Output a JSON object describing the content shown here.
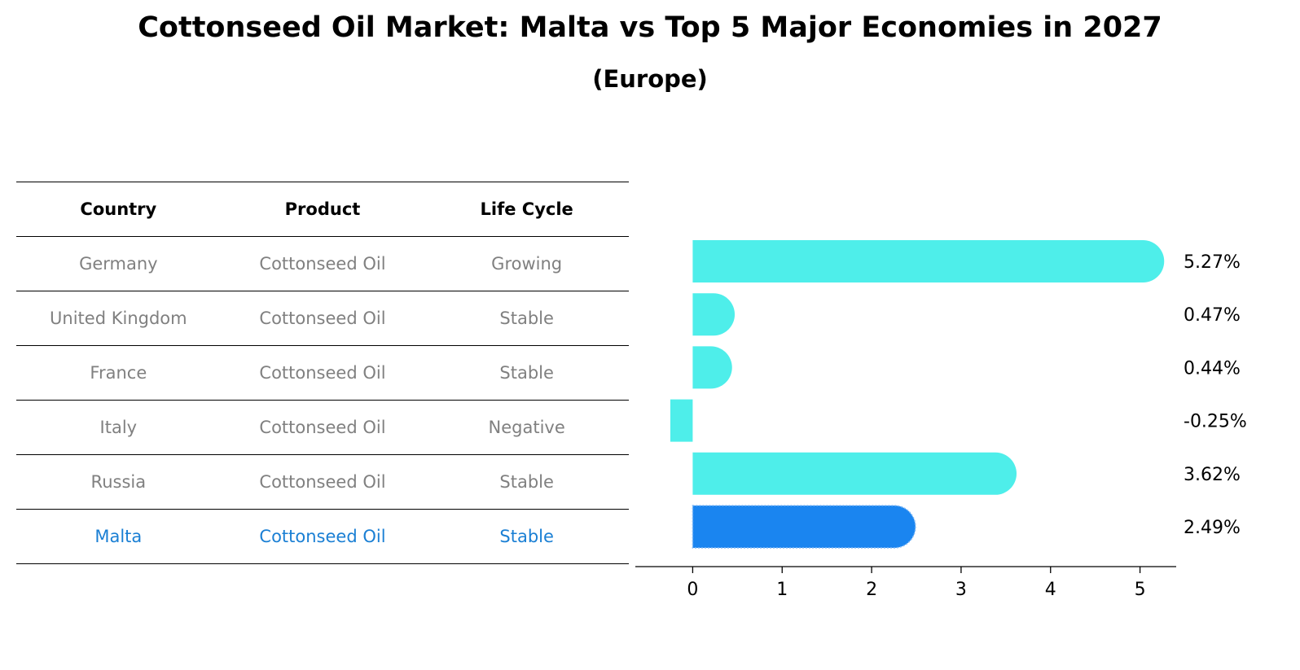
{
  "title": "Cottonseed Oil Market: Malta vs Top 5 Major Economies in 2027",
  "subtitle": "(Europe)",
  "table": {
    "headers": [
      "Country",
      "Product",
      "Life Cycle"
    ],
    "rows": [
      {
        "country": "Germany",
        "product": "Cottonseed Oil",
        "life_cycle": "Growing"
      },
      {
        "country": "United Kingdom",
        "product": "Cottonseed Oil",
        "life_cycle": "Stable"
      },
      {
        "country": "France",
        "product": "Cottonseed Oil",
        "life_cycle": "Stable"
      },
      {
        "country": "Italy",
        "product": "Cottonseed Oil",
        "life_cycle": "Negative"
      },
      {
        "country": "Russia",
        "product": "Cottonseed Oil",
        "life_cycle": "Stable"
      },
      {
        "country": "Malta",
        "product": "Cottonseed Oil",
        "life_cycle": "Stable"
      }
    ]
  },
  "chart_data": {
    "type": "bar",
    "orientation": "horizontal",
    "categories": [
      "Germany",
      "United Kingdom",
      "France",
      "Italy",
      "Russia",
      "Malta"
    ],
    "values": [
      5.27,
      0.47,
      0.44,
      -0.25,
      3.62,
      2.49
    ],
    "value_labels": [
      "5.27%",
      "0.47%",
      "0.44%",
      "-0.25%",
      "3.62%",
      "2.49%"
    ],
    "highlight": "Malta",
    "xlim": [
      -0.55,
      5.55
    ],
    "xticks": [
      0,
      1,
      2,
      3,
      4,
      5
    ],
    "xlabel": "",
    "ylabel": "",
    "colors": {
      "default": "#4eeeea",
      "highlight": "#1a85f0",
      "highlight_border": "#7fb8f5"
    }
  }
}
